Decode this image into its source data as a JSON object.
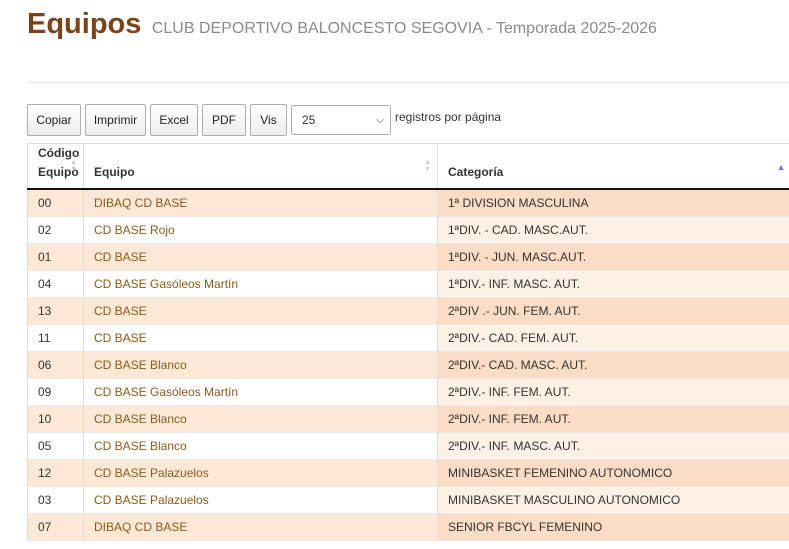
{
  "header": {
    "title": "Equipos",
    "subtitle": "CLUB DEPORTIVO BALONCESTO SEGOVIA - Temporada 2025-2026"
  },
  "toolbar": {
    "buttons": [
      "Copiar",
      "Imprimir",
      "Excel",
      "PDF",
      "Vis"
    ],
    "page_length": "25",
    "page_length_suffix": "registros por página"
  },
  "table": {
    "columns": [
      "Código Equipo",
      "Equipo",
      "Categoría"
    ],
    "rows": [
      {
        "code": "00",
        "team": "DIBAQ CD BASE",
        "category": "1ª DIVISION MASCULINA"
      },
      {
        "code": "02",
        "team": "CD BASE Rojo",
        "category": "1ªDIV. - CAD. MASC.AUT."
      },
      {
        "code": "01",
        "team": "CD BASE",
        "category": "1ªDIV. - JUN. MASC.AUT."
      },
      {
        "code": "04",
        "team": "CD BASE Gasóleos Martín",
        "category": "1ªDIV.- INF. MASC. AUT."
      },
      {
        "code": "13",
        "team": "CD BASE",
        "category": "2ªDIV .- JUN. FEM. AUT."
      },
      {
        "code": "11",
        "team": "CD BASE",
        "category": "2ªDIV.- CAD. FEM. AUT."
      },
      {
        "code": "06",
        "team": "CD BASE Blanco",
        "category": "2ªDIV.- CAD. MASC. AUT."
      },
      {
        "code": "09",
        "team": "CD BASE Gasóleos Martín",
        "category": "2ªDIV.- INF. FEM. AUT."
      },
      {
        "code": "10",
        "team": "CD BASE Blanco",
        "category": "2ªDIV.- INF. FEM. AUT."
      },
      {
        "code": "05",
        "team": "CD BASE Blanco",
        "category": "2ªDIV.- INF. MASC. AUT."
      },
      {
        "code": "12",
        "team": "CD BASE Palazuelos",
        "category": "MINIBASKET FEMENINO AUTONOMICO"
      },
      {
        "code": "03",
        "team": "CD BASE Palazuelos",
        "category": "MINIBASKET MASCULINO AUTONOMICO"
      },
      {
        "code": "07",
        "team": "DIBAQ CD BASE",
        "category": "SENIOR FBCYL FEMENINO"
      }
    ]
  }
}
